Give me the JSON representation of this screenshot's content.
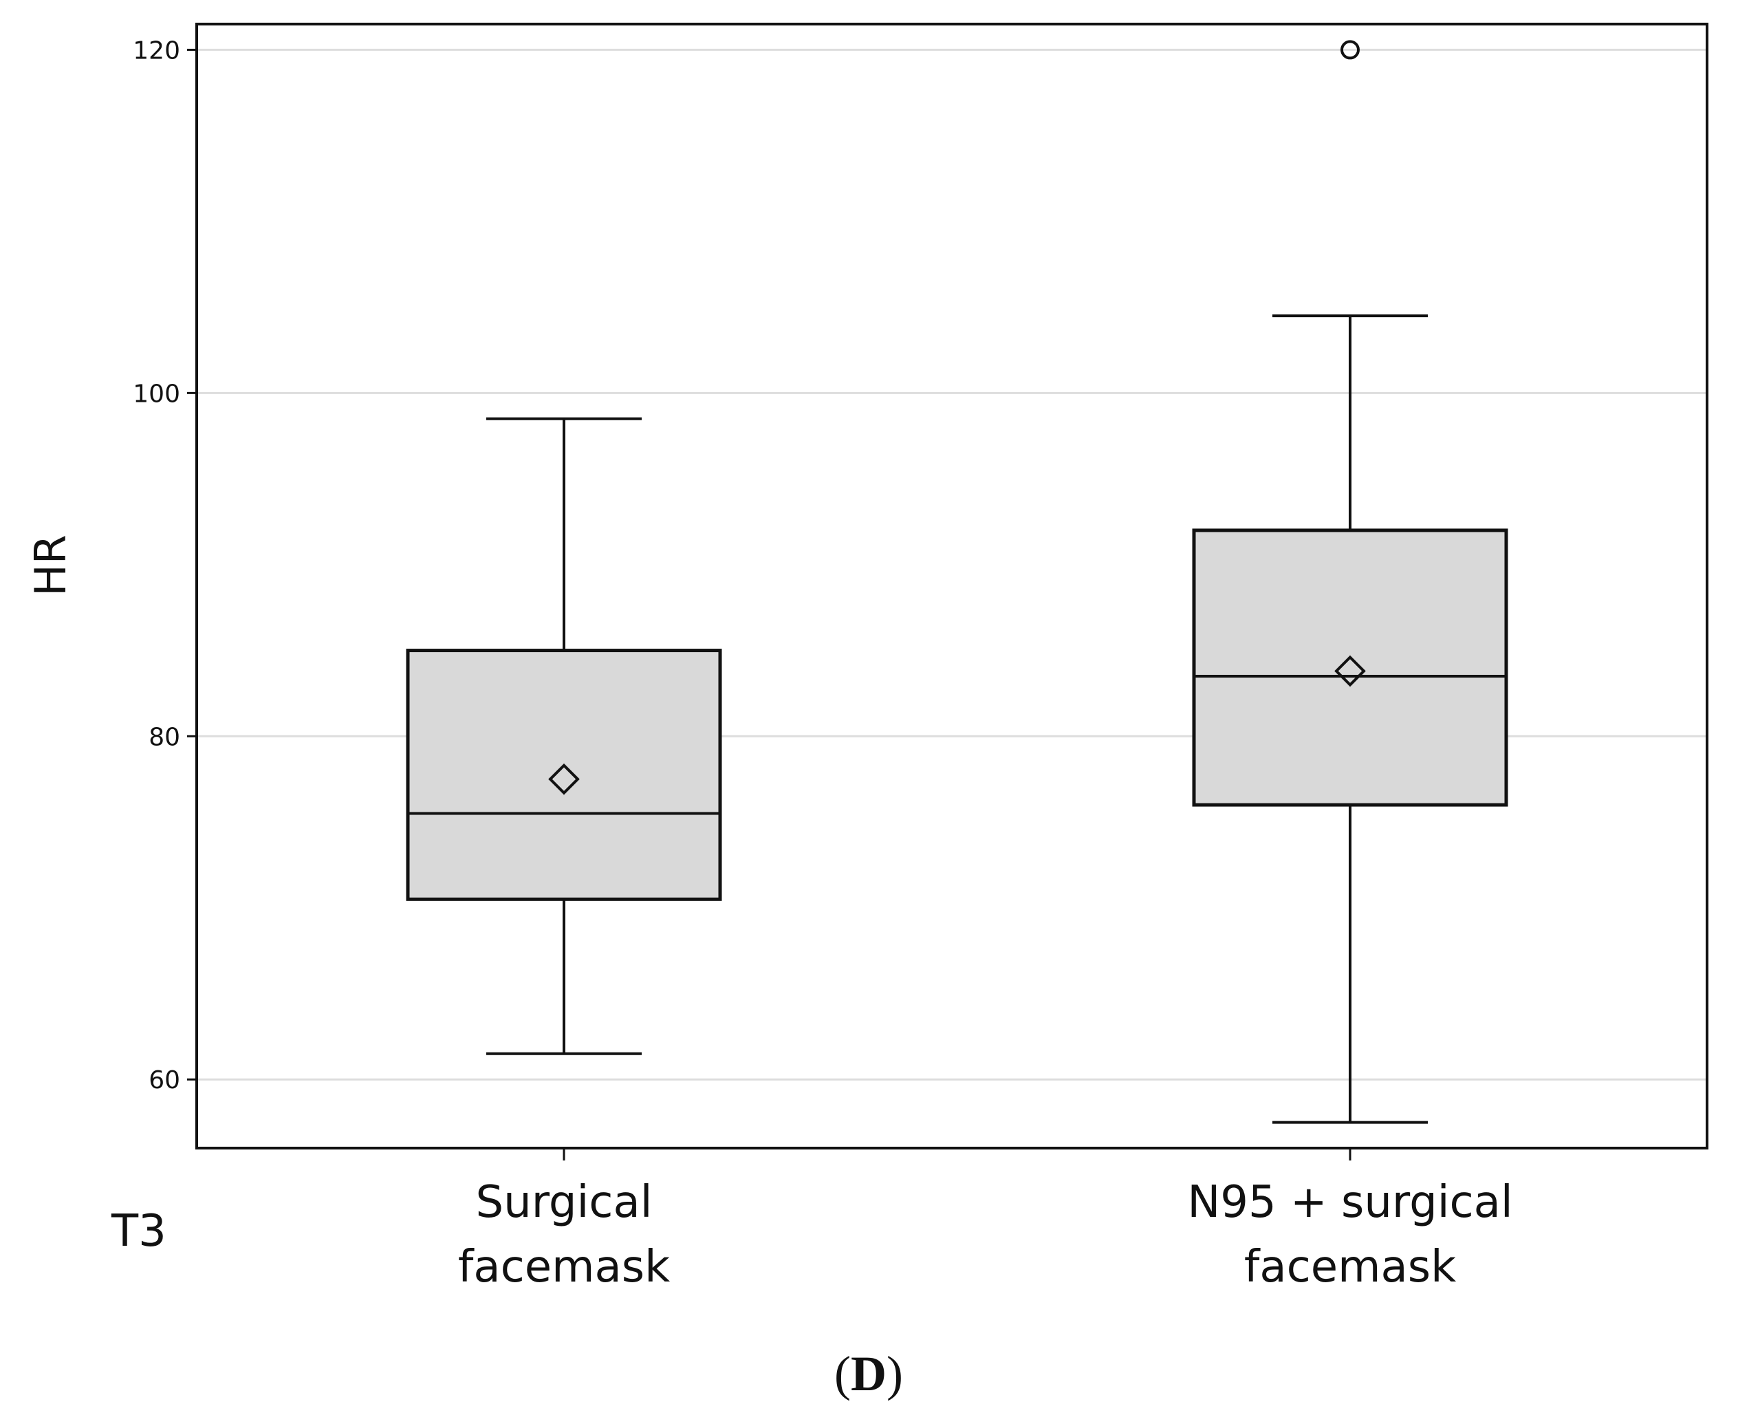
{
  "chart_data": {
    "type": "box",
    "ylabel": "HR",
    "xlabel": "",
    "ylim": [
      56,
      121.5
    ],
    "yticks": [
      60,
      80,
      100,
      120
    ],
    "grid": "horizontal",
    "categories": [
      {
        "lines": [
          "Surgical",
          "facemask"
        ]
      },
      {
        "lines": [
          "N95 + surgical",
          "facemask"
        ]
      }
    ],
    "boxes": [
      {
        "whisker_low": 61.5,
        "q1": 70.5,
        "median": 75.5,
        "q3": 85,
        "whisker_high": 98.5,
        "mean": 77.5,
        "outliers": []
      },
      {
        "whisker_low": 57.5,
        "q1": 76,
        "median": 83.5,
        "q3": 92,
        "whisker_high": 104.5,
        "mean": 83.8,
        "outliers": [
          120
        ]
      }
    ],
    "panel_tag": "T3",
    "figure_label": {
      "open": "(",
      "letter": "D",
      "close": ")"
    },
    "colors": {
      "box_fill": "#d9d9d9",
      "grid": "#dddddd",
      "stroke": "#111111"
    }
  }
}
